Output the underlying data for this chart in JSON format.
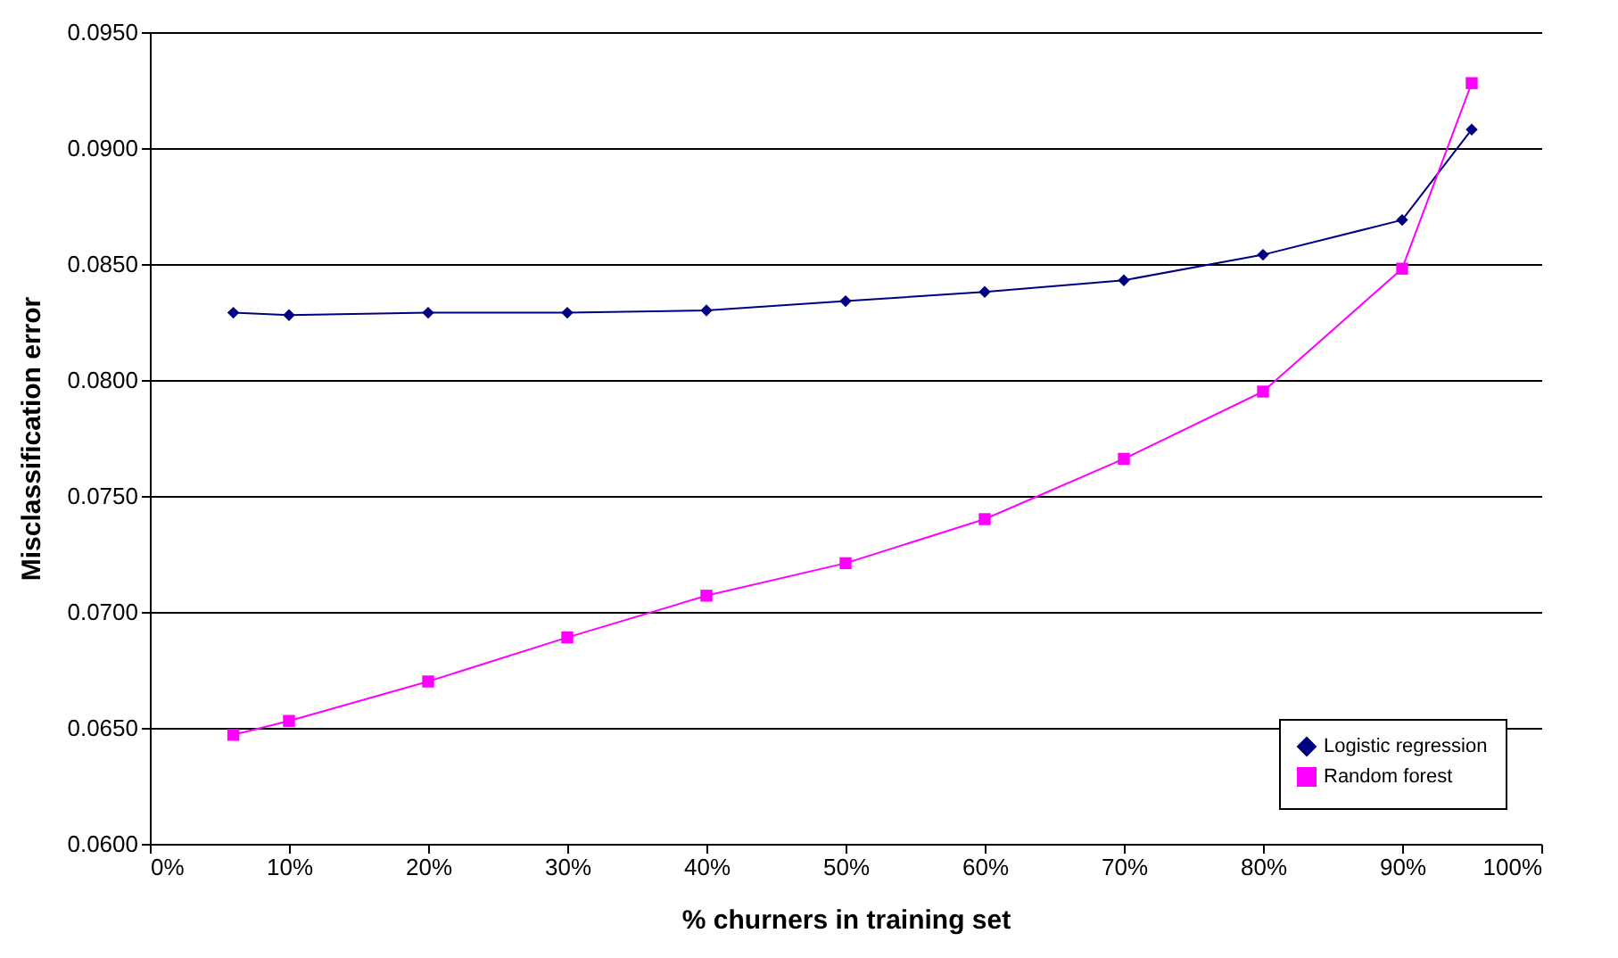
{
  "chart_data": {
    "type": "line",
    "xlabel": "% churners in training set",
    "ylabel": "Misclassification error",
    "xlim": [
      0,
      100
    ],
    "xticks": [
      {
        "value": 0,
        "label": "0%"
      },
      {
        "value": 10,
        "label": "10%"
      },
      {
        "value": 20,
        "label": "20%"
      },
      {
        "value": 30,
        "label": "30%"
      },
      {
        "value": 40,
        "label": "40%"
      },
      {
        "value": 50,
        "label": "50%"
      },
      {
        "value": 60,
        "label": "60%"
      },
      {
        "value": 70,
        "label": "70%"
      },
      {
        "value": 80,
        "label": "80%"
      },
      {
        "value": 90,
        "label": "90%"
      },
      {
        "value": 100,
        "label": "100%"
      }
    ],
    "ylim": [
      0.06,
      0.095
    ],
    "yticks": [
      {
        "value": 0.06,
        "label": "0.0600"
      },
      {
        "value": 0.065,
        "label": "0.0650"
      },
      {
        "value": 0.07,
        "label": "0.0700"
      },
      {
        "value": 0.075,
        "label": "0.0750"
      },
      {
        "value": 0.08,
        "label": "0.0800"
      },
      {
        "value": 0.085,
        "label": "0.0850"
      },
      {
        "value": 0.09,
        "label": "0.0900"
      },
      {
        "value": 0.095,
        "label": "0.0950"
      }
    ],
    "x": [
      6,
      10,
      20,
      30,
      40,
      50,
      60,
      70,
      80,
      90,
      95
    ],
    "series": [
      {
        "name": "Logistic regression",
        "color": "#000080",
        "marker": "diamond",
        "values": [
          0.0829,
          0.0828,
          0.0829,
          0.0829,
          0.083,
          0.0834,
          0.0838,
          0.0843,
          0.0854,
          0.0869,
          0.0908
        ]
      },
      {
        "name": "Random forest",
        "color": "#ff00ff",
        "marker": "square",
        "values": [
          0.0647,
          0.0653,
          0.067,
          0.0689,
          0.0707,
          0.0721,
          0.074,
          0.0766,
          0.0795,
          0.0848,
          0.0928
        ]
      }
    ],
    "grid": "y",
    "legend": "bottom right"
  }
}
